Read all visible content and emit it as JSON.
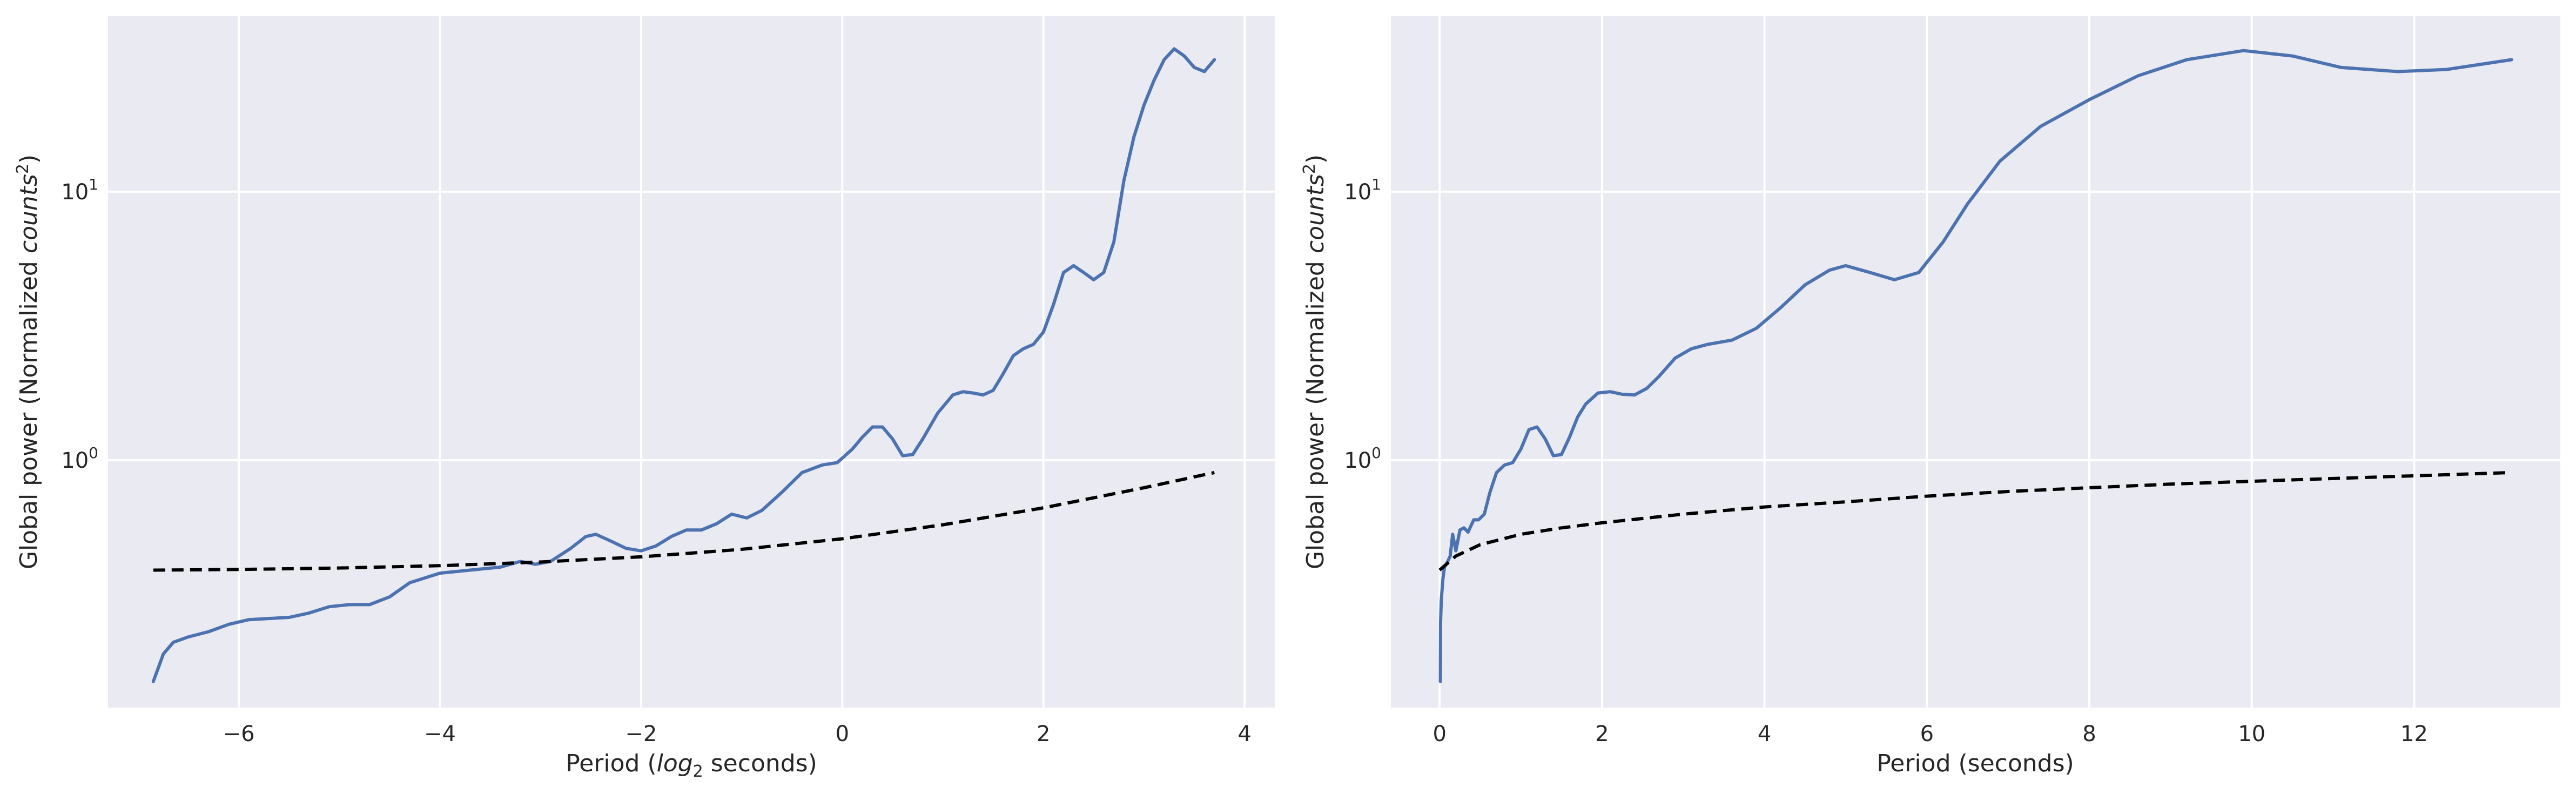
{
  "chart_data": [
    {
      "type": "line",
      "title": "",
      "xlabel_parts": [
        "Period (",
        "log",
        "2",
        " seconds)"
      ],
      "ylabel_parts": [
        "Global power (Normalized ",
        "counts",
        "2",
        ")"
      ],
      "xlim": [
        -7.3,
        4.3
      ],
      "ylim": [
        0.12,
        45
      ],
      "yscale": "log",
      "xticks": [
        -6,
        -4,
        -2,
        0,
        2,
        4
      ],
      "xtick_labels": [
        "−6",
        "−4",
        "−2",
        "0",
        "2",
        "4"
      ],
      "yticks": [
        1,
        10
      ],
      "ytick_base": "10",
      "ytick_exponents": [
        "0",
        "1"
      ],
      "grid": true,
      "series": [
        {
          "color": "#4c72b0",
          "style": "solid",
          "x": [
            -6.85,
            -6.75,
            -6.65,
            -6.5,
            -6.3,
            -6.1,
            -5.9,
            -5.5,
            -5.3,
            -5.1,
            -4.9,
            -4.7,
            -4.5,
            -4.3,
            -4.0,
            -3.7,
            -3.4,
            -3.2,
            -3.05,
            -2.9,
            -2.7,
            -2.55,
            -2.45,
            -2.3,
            -2.15,
            -2.0,
            -1.85,
            -1.7,
            -1.55,
            -1.4,
            -1.25,
            -1.1,
            -0.95,
            -0.8,
            -0.6,
            -0.4,
            -0.2,
            -0.05,
            0.1,
            0.2,
            0.3,
            0.4,
            0.5,
            0.6,
            0.7,
            0.8,
            0.95,
            1.1,
            1.2,
            1.3,
            1.4,
            1.5,
            1.6,
            1.7,
            1.8,
            1.9,
            2.0,
            2.1,
            2.2,
            2.3,
            2.4,
            2.5,
            2.6,
            2.7,
            2.8,
            2.9,
            3.0,
            3.1,
            3.2,
            3.3,
            3.4,
            3.5,
            3.6,
            3.7
          ],
          "y": [
            0.15,
            0.19,
            0.21,
            0.22,
            0.23,
            0.245,
            0.255,
            0.26,
            0.27,
            0.285,
            0.29,
            0.29,
            0.31,
            0.35,
            0.38,
            0.39,
            0.4,
            0.42,
            0.41,
            0.42,
            0.47,
            0.52,
            0.53,
            0.5,
            0.47,
            0.46,
            0.48,
            0.52,
            0.55,
            0.55,
            0.58,
            0.63,
            0.61,
            0.65,
            0.76,
            0.9,
            0.96,
            0.98,
            1.1,
            1.22,
            1.33,
            1.33,
            1.2,
            1.04,
            1.05,
            1.2,
            1.5,
            1.75,
            1.8,
            1.78,
            1.75,
            1.82,
            2.1,
            2.45,
            2.6,
            2.7,
            3.0,
            3.8,
            5.0,
            5.3,
            5.0,
            4.7,
            5.0,
            6.5,
            11,
            16,
            21,
            26,
            31,
            34,
            32,
            29,
            28,
            31
          ]
        },
        {
          "color": "#000000",
          "style": "dashed",
          "x": [
            -6.85,
            -6,
            -5,
            -4,
            -3,
            -2,
            -1,
            0,
            1,
            2,
            3,
            3.7
          ],
          "y": [
            0.39,
            0.392,
            0.397,
            0.405,
            0.418,
            0.437,
            0.466,
            0.51,
            0.575,
            0.665,
            0.79,
            0.9
          ]
        }
      ]
    },
    {
      "type": "line",
      "title": "",
      "xlabel_parts": [
        "Period (seconds)"
      ],
      "ylabel_parts": [
        "Global power (Normalized ",
        "counts",
        "2",
        ")"
      ],
      "xlim": [
        -0.6,
        13.8
      ],
      "ylim": [
        0.12,
        45
      ],
      "yscale": "log",
      "xticks": [
        0,
        2,
        4,
        6,
        8,
        10,
        12
      ],
      "xtick_labels": [
        "0",
        "2",
        "4",
        "6",
        "8",
        "10",
        "12"
      ],
      "yticks": [
        1,
        10
      ],
      "ytick_base": "10",
      "ytick_exponents": [
        "0",
        "1"
      ],
      "grid": true,
      "series": [
        {
          "color": "#4c72b0",
          "style": "solid",
          "x": [
            0.009,
            0.012,
            0.02,
            0.04,
            0.06,
            0.08,
            0.1,
            0.13,
            0.16,
            0.2,
            0.25,
            0.3,
            0.35,
            0.42,
            0.48,
            0.55,
            0.62,
            0.7,
            0.8,
            0.9,
            1.0,
            1.1,
            1.2,
            1.3,
            1.4,
            1.5,
            1.6,
            1.7,
            1.8,
            1.95,
            2.1,
            2.25,
            2.4,
            2.55,
            2.7,
            2.9,
            3.1,
            3.3,
            3.6,
            3.9,
            4.2,
            4.5,
            4.8,
            5.0,
            5.3,
            5.6,
            5.9,
            6.2,
            6.5,
            6.9,
            7.4,
            8.0,
            8.6,
            9.2,
            9.9,
            10.5,
            11.1,
            11.8,
            12.4,
            13.2
          ],
          "y": [
            0.15,
            0.25,
            0.3,
            0.36,
            0.4,
            0.41,
            0.42,
            0.44,
            0.53,
            0.46,
            0.55,
            0.56,
            0.54,
            0.6,
            0.6,
            0.63,
            0.76,
            0.9,
            0.96,
            0.98,
            1.1,
            1.3,
            1.33,
            1.2,
            1.04,
            1.05,
            1.22,
            1.45,
            1.62,
            1.78,
            1.8,
            1.76,
            1.75,
            1.85,
            2.05,
            2.4,
            2.6,
            2.7,
            2.8,
            3.1,
            3.7,
            4.5,
            5.1,
            5.3,
            5.0,
            4.7,
            5.0,
            6.5,
            9.0,
            13.0,
            17.5,
            22.0,
            27.0,
            31.0,
            33.5,
            32.0,
            29.0,
            28.0,
            28.5,
            31.0
          ]
        },
        {
          "color": "#000000",
          "style": "dashed",
          "x": [
            0,
            0.2,
            0.5,
            1,
            1.5,
            2,
            3,
            4,
            5,
            6,
            7,
            8,
            9,
            10,
            11,
            12,
            13.2
          ],
          "y": [
            0.39,
            0.44,
            0.485,
            0.53,
            0.56,
            0.585,
            0.63,
            0.67,
            0.7,
            0.735,
            0.765,
            0.79,
            0.815,
            0.835,
            0.855,
            0.875,
            0.9
          ]
        }
      ]
    }
  ]
}
